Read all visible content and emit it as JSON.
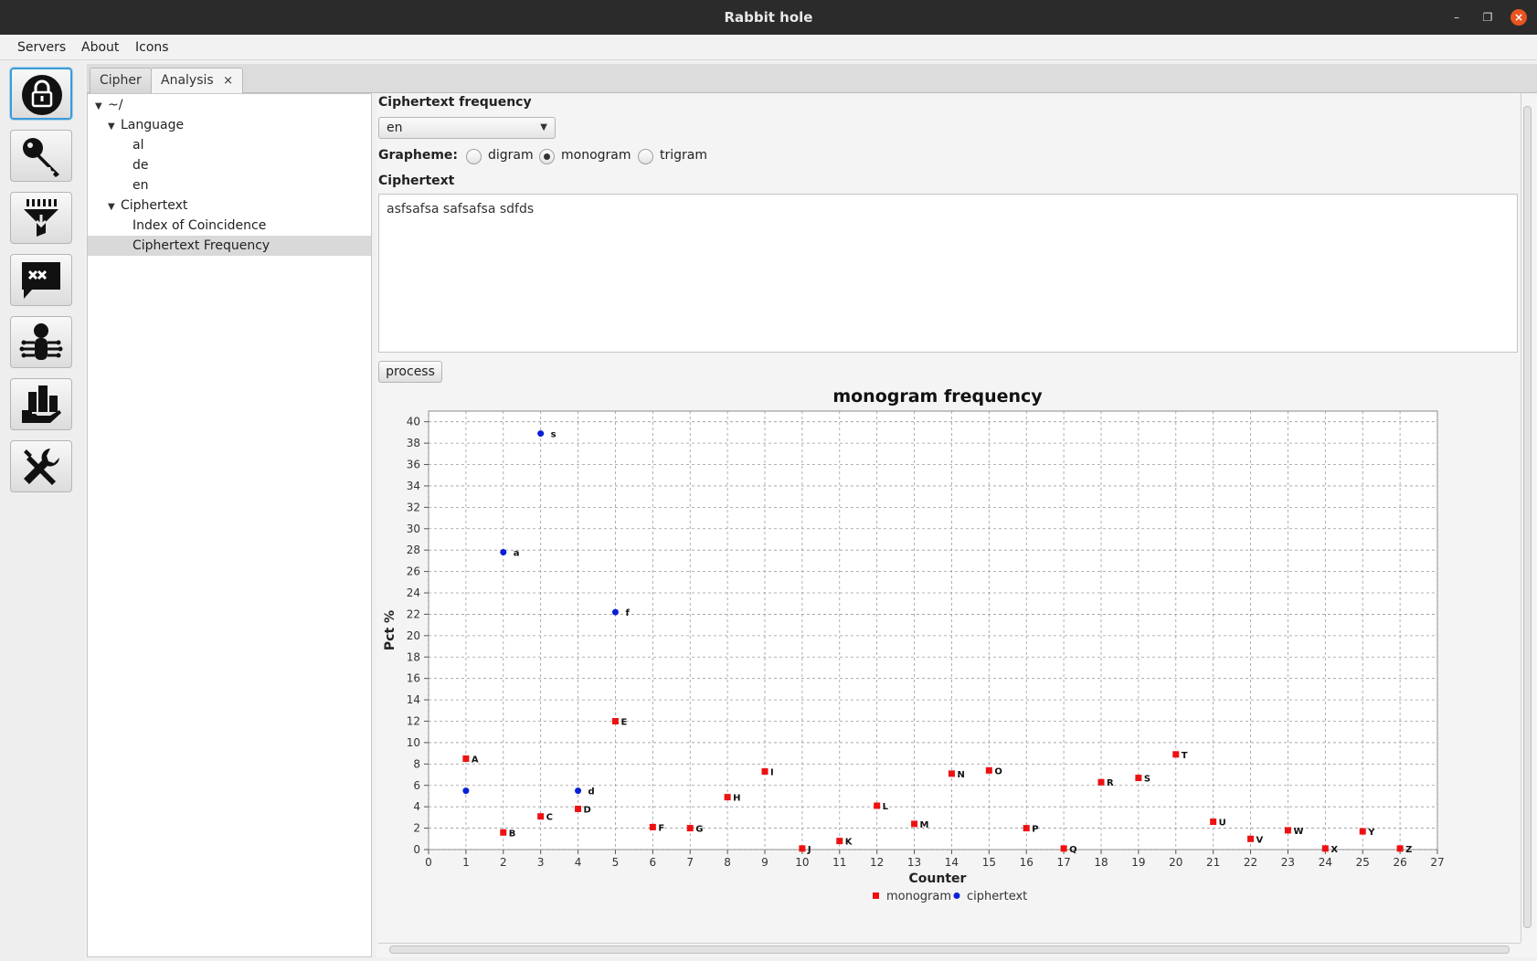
{
  "window": {
    "title": "Rabbit hole"
  },
  "menu": [
    "Servers",
    "About",
    "Icons"
  ],
  "toolbar": {
    "buttons": [
      {
        "icon": "lock-icon"
      },
      {
        "icon": "key-icon"
      },
      {
        "icon": "filter-icon"
      },
      {
        "icon": "message-icon"
      },
      {
        "icon": "bug-icon"
      },
      {
        "icon": "hand-buildings-icon"
      },
      {
        "icon": "tools-icon"
      }
    ]
  },
  "tabs": [
    {
      "label": "Cipher"
    },
    {
      "label": "Analysis",
      "close": "×"
    }
  ],
  "tree": {
    "root": "~/",
    "language": "Language",
    "languages": [
      "al",
      "de",
      "en"
    ],
    "ciphertext": "Ciphertext",
    "ciphertext_items": [
      "Index of Coincidence",
      "Ciphertext Frequency"
    ]
  },
  "panel": {
    "frequency_title": "Ciphertext frequency",
    "language_value": "en",
    "grapheme_label": "Grapheme:",
    "grapheme_options": [
      "digram",
      "monogram",
      "trigram"
    ],
    "grapheme_selected": "monogram",
    "ciphertext_title": "Ciphertext",
    "ciphertext_value": "asfsafsa safsafsa sdfds",
    "process_label": "process"
  },
  "chart_data": {
    "type": "scatter",
    "title": "monogram frequency",
    "xlabel": "Counter",
    "ylabel": "Pct %",
    "xlim": [
      0,
      27
    ],
    "ylim": [
      0,
      41
    ],
    "xticks": [
      0,
      1,
      2,
      3,
      4,
      5,
      6,
      7,
      8,
      9,
      10,
      11,
      12,
      13,
      14,
      15,
      16,
      17,
      18,
      19,
      20,
      21,
      22,
      23,
      24,
      25,
      26,
      27
    ],
    "yticks": [
      0,
      2,
      4,
      6,
      8,
      10,
      12,
      14,
      16,
      18,
      20,
      22,
      24,
      26,
      28,
      30,
      32,
      34,
      36,
      38,
      40
    ],
    "grid": true,
    "legend": "bottom",
    "series": [
      {
        "name": "monogram",
        "color": "#ee1111",
        "marker": "square",
        "points": [
          {
            "x": 1,
            "y": 8.5,
            "label": "A"
          },
          {
            "x": 2,
            "y": 1.6,
            "label": "B"
          },
          {
            "x": 3,
            "y": 3.1,
            "label": "C"
          },
          {
            "x": 4,
            "y": 3.8,
            "label": "D"
          },
          {
            "x": 5,
            "y": 12.0,
            "label": "E"
          },
          {
            "x": 6,
            "y": 2.1,
            "label": "F"
          },
          {
            "x": 7,
            "y": 2.0,
            "label": "G"
          },
          {
            "x": 8,
            "y": 4.9,
            "label": "H"
          },
          {
            "x": 9,
            "y": 7.3,
            "label": "I"
          },
          {
            "x": 10,
            "y": 0.1,
            "label": "J"
          },
          {
            "x": 11,
            "y": 0.8,
            "label": "K"
          },
          {
            "x": 12,
            "y": 4.1,
            "label": "L"
          },
          {
            "x": 13,
            "y": 2.4,
            "label": "M"
          },
          {
            "x": 14,
            "y": 7.1,
            "label": "N"
          },
          {
            "x": 15,
            "y": 7.4,
            "label": "O"
          },
          {
            "x": 16,
            "y": 2.0,
            "label": "P"
          },
          {
            "x": 17,
            "y": 0.1,
            "label": "Q"
          },
          {
            "x": 18,
            "y": 6.3,
            "label": "R"
          },
          {
            "x": 19,
            "y": 6.7,
            "label": "S"
          },
          {
            "x": 20,
            "y": 8.9,
            "label": "T"
          },
          {
            "x": 21,
            "y": 2.6,
            "label": "U"
          },
          {
            "x": 22,
            "y": 1.0,
            "label": "V"
          },
          {
            "x": 23,
            "y": 1.8,
            "label": "W"
          },
          {
            "x": 24,
            "y": 0.1,
            "label": "X"
          },
          {
            "x": 25,
            "y": 1.7,
            "label": "Y"
          },
          {
            "x": 26,
            "y": 0.1,
            "label": "Z"
          }
        ]
      },
      {
        "name": "ciphertext",
        "color": "#0a1fd6",
        "marker": "circle",
        "points": [
          {
            "x": 1,
            "y": 5.5,
            "label": ""
          },
          {
            "x": 2,
            "y": 27.8,
            "label": "a"
          },
          {
            "x": 3,
            "y": 38.9,
            "label": "s"
          },
          {
            "x": 4,
            "y": 5.5,
            "label": "d"
          },
          {
            "x": 5,
            "y": 22.2,
            "label": "f"
          }
        ]
      }
    ]
  }
}
